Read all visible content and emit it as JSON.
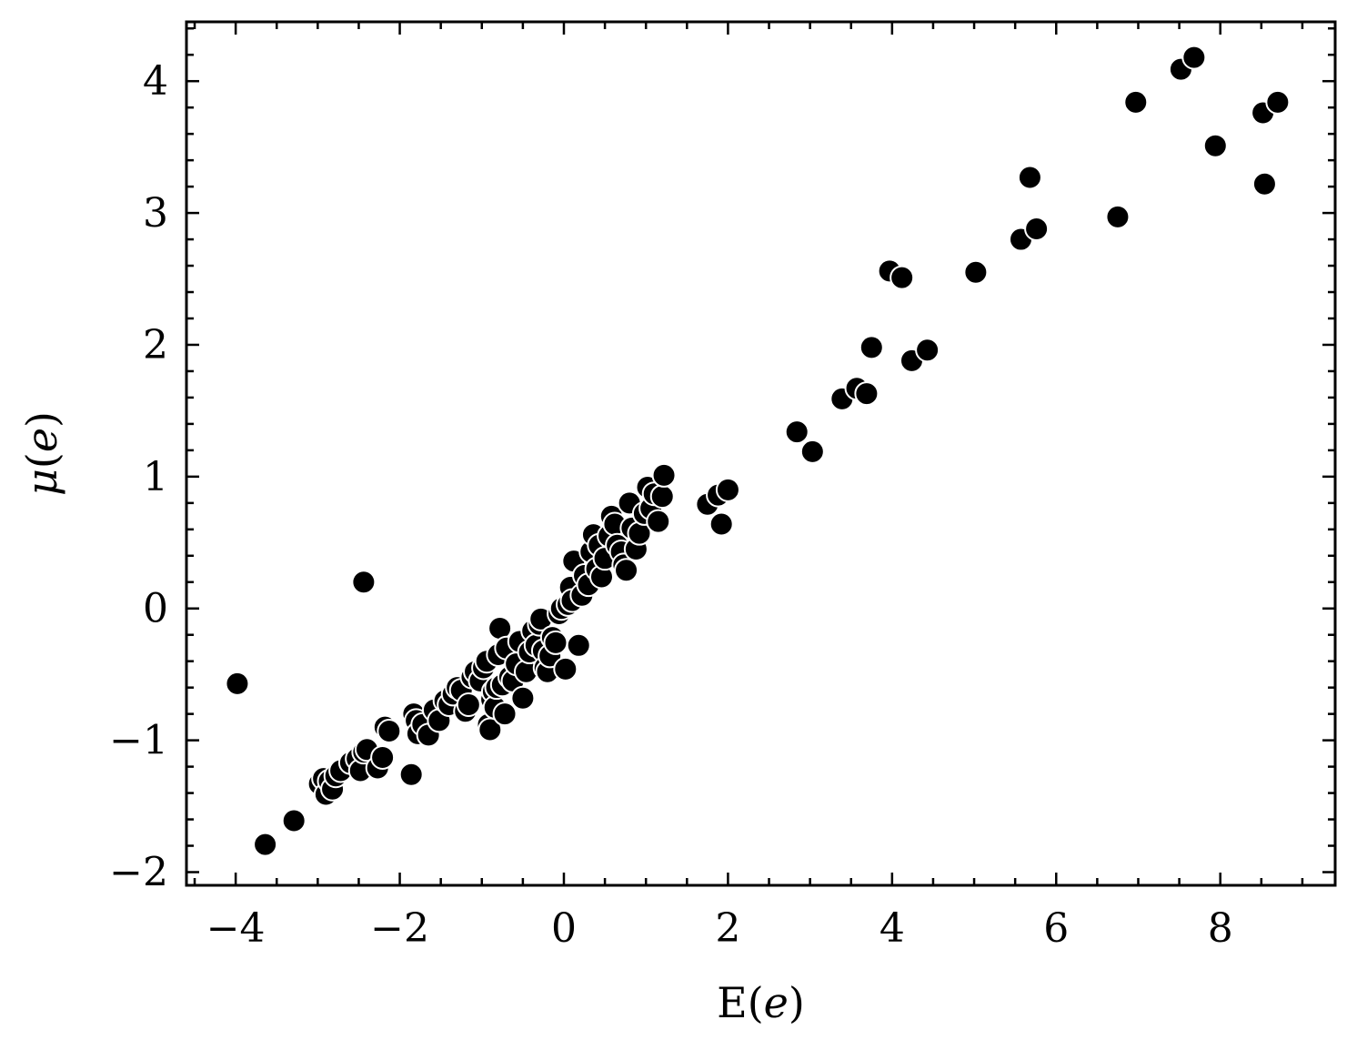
{
  "chart_data": {
    "type": "scatter",
    "title": "",
    "xlabel": {
      "text": "E(",
      "var": "e",
      "close": ")"
    },
    "ylabel": {
      "text": "(",
      "greek": "μ",
      "var": "e",
      "close": ")"
    },
    "xlim": [
      -4.6,
      9.4
    ],
    "ylim": [
      -2.1,
      4.45
    ],
    "xticks": [
      -4,
      -2,
      0,
      2,
      4,
      6,
      8
    ],
    "xtick_labels": [
      "−4",
      "−2",
      "0",
      "2",
      "4",
      "6",
      "8"
    ],
    "yticks": [
      -2,
      -1,
      0,
      1,
      2,
      3,
      4
    ],
    "ytick_labels": [
      "−2",
      "−1",
      "0",
      "1",
      "2",
      "3",
      "4"
    ],
    "x_minor_step": 0.5,
    "y_minor_step": 0.2,
    "grid": false,
    "legend": "none",
    "marker_color": "#000000",
    "marker_edge": "#ffffff",
    "points": [
      [
        -3.98,
        -0.57
      ],
      [
        -2.44,
        0.2
      ],
      [
        -3.64,
        -1.79
      ],
      [
        -3.29,
        -1.61
      ],
      [
        -2.98,
        -1.33
      ],
      [
        -2.93,
        -1.29
      ],
      [
        -2.9,
        -1.41
      ],
      [
        -2.86,
        -1.31
      ],
      [
        -2.82,
        -1.37
      ],
      [
        -2.78,
        -1.27
      ],
      [
        -2.72,
        -1.23
      ],
      [
        -2.6,
        -1.17
      ],
      [
        -2.52,
        -1.14
      ],
      [
        -2.48,
        -1.23
      ],
      [
        -2.44,
        -1.09
      ],
      [
        -2.4,
        -1.07
      ],
      [
        -2.27,
        -1.21
      ],
      [
        -2.21,
        -1.13
      ],
      [
        -2.18,
        -0.9
      ],
      [
        -2.13,
        -0.93
      ],
      [
        -1.86,
        -1.26
      ],
      [
        -1.83,
        -0.8
      ],
      [
        -1.8,
        -0.85
      ],
      [
        -1.78,
        -0.95
      ],
      [
        -1.72,
        -0.88
      ],
      [
        -1.65,
        -0.96
      ],
      [
        -1.58,
        -0.77
      ],
      [
        -1.52,
        -0.85
      ],
      [
        -1.45,
        -0.7
      ],
      [
        -1.4,
        -0.73
      ],
      [
        -1.35,
        -0.65
      ],
      [
        -1.3,
        -0.6
      ],
      [
        -1.25,
        -0.62
      ],
      [
        -1.2,
        -0.78
      ],
      [
        -1.16,
        -0.73
      ],
      [
        -1.12,
        -0.52
      ],
      [
        -1.08,
        -0.48
      ],
      [
        -1.02,
        -0.55
      ],
      [
        -0.98,
        -0.45
      ],
      [
        -0.94,
        -0.4
      ],
      [
        -0.92,
        -0.88
      ],
      [
        -0.9,
        -0.92
      ],
      [
        -0.88,
        -0.69
      ],
      [
        -0.86,
        -0.63
      ],
      [
        -0.84,
        -0.75
      ],
      [
        -0.82,
        -0.6
      ],
      [
        -0.8,
        -0.35
      ],
      [
        -0.78,
        -0.15
      ],
      [
        -0.75,
        -0.58
      ],
      [
        -0.72,
        -0.8
      ],
      [
        -0.7,
        -0.3
      ],
      [
        -0.66,
        -0.52
      ],
      [
        -0.62,
        -0.55
      ],
      [
        -0.58,
        -0.42
      ],
      [
        -0.54,
        -0.25
      ],
      [
        -0.5,
        -0.68
      ],
      [
        -0.46,
        -0.48
      ],
      [
        -0.42,
        -0.33
      ],
      [
        -0.38,
        -0.17
      ],
      [
        -0.34,
        -0.28
      ],
      [
        -0.3,
        -0.12
      ],
      [
        -0.28,
        -0.08
      ],
      [
        -0.25,
        -0.32
      ],
      [
        -0.23,
        -0.45
      ],
      [
        -0.2,
        -0.48
      ],
      [
        -0.17,
        -0.36
      ],
      [
        -0.14,
        -0.22
      ],
      [
        -0.1,
        -0.26
      ],
      [
        -0.06,
        -0.04
      ],
      [
        -0.03,
        0.0
      ],
      [
        0.02,
        -0.46
      ],
      [
        0.05,
        0.03
      ],
      [
        0.08,
        0.16
      ],
      [
        0.1,
        0.06
      ],
      [
        0.12,
        0.36
      ],
      [
        0.18,
        -0.28
      ],
      [
        0.22,
        0.1
      ],
      [
        0.25,
        0.25
      ],
      [
        0.3,
        0.18
      ],
      [
        0.33,
        0.43
      ],
      [
        0.36,
        0.56
      ],
      [
        0.4,
        0.3
      ],
      [
        0.43,
        0.48
      ],
      [
        0.46,
        0.24
      ],
      [
        0.5,
        0.38
      ],
      [
        0.55,
        0.55
      ],
      [
        0.58,
        0.7
      ],
      [
        0.62,
        0.64
      ],
      [
        0.65,
        0.48
      ],
      [
        0.7,
        0.43
      ],
      [
        0.73,
        0.33
      ],
      [
        0.76,
        0.29
      ],
      [
        0.8,
        0.8
      ],
      [
        0.83,
        0.61
      ],
      [
        0.88,
        0.45
      ],
      [
        0.92,
        0.57
      ],
      [
        0.98,
        0.72
      ],
      [
        1.02,
        0.92
      ],
      [
        1.06,
        0.76
      ],
      [
        1.1,
        0.87
      ],
      [
        1.15,
        0.66
      ],
      [
        1.2,
        0.85
      ],
      [
        1.22,
        1.01
      ],
      [
        1.75,
        0.79
      ],
      [
        1.88,
        0.86
      ],
      [
        1.92,
        0.64
      ],
      [
        2.0,
        0.9
      ],
      [
        2.84,
        1.34
      ],
      [
        3.03,
        1.19
      ],
      [
        3.39,
        1.59
      ],
      [
        3.57,
        1.67
      ],
      [
        3.69,
        1.63
      ],
      [
        3.75,
        1.98
      ],
      [
        3.97,
        2.56
      ],
      [
        4.12,
        2.51
      ],
      [
        4.24,
        1.88
      ],
      [
        4.43,
        1.96
      ],
      [
        5.02,
        2.55
      ],
      [
        5.57,
        2.8
      ],
      [
        5.68,
        3.27
      ],
      [
        5.76,
        2.88
      ],
      [
        6.75,
        2.97
      ],
      [
        6.97,
        3.84
      ],
      [
        7.52,
        4.09
      ],
      [
        7.68,
        4.18
      ],
      [
        7.94,
        3.51
      ],
      [
        8.52,
        3.76
      ],
      [
        8.54,
        3.22
      ],
      [
        8.7,
        3.84
      ]
    ]
  }
}
